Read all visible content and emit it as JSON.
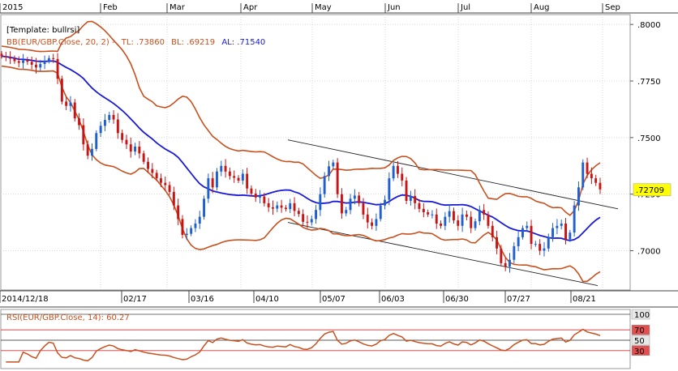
{
  "chart_data": [
    {
      "type": "candlestick",
      "template_label": "[Template: bullrsi]",
      "indicator_label": {
        "name": "BB(EUR/GBP.Close, 20, 2) -",
        "tl": "TL: .73860",
        "bl": "BL: .69219",
        "al": "AL: .71540"
      },
      "year_label": "2015",
      "month_labels": [
        "Feb",
        "Mar",
        "Apr",
        "May",
        "Jun",
        "Jul",
        "Aug",
        "Sep"
      ],
      "date_labels": [
        "2014/12/18",
        "02/17",
        "03/16",
        "04/10",
        "05/07",
        "06/03",
        "06/30",
        "07/27",
        "08/21"
      ],
      "y_ticks": [
        ".8000",
        ".7750",
        ".7500",
        ".7250",
        ".7000"
      ],
      "ylim": [
        0.683,
        0.804
      ],
      "last_price_label": ".72709",
      "last_price": 0.72709,
      "colors": {
        "up": "#1f5fd0",
        "down": "#c81414",
        "band": "#c8501e",
        "middle": "#1a1ad8",
        "last_price_bg": "#ffff00"
      },
      "closes": [
        0.786,
        0.7855,
        0.7849,
        0.7838,
        0.783,
        0.7841,
        0.7835,
        0.7822,
        0.781,
        0.7825,
        0.7838,
        0.7851,
        0.7847,
        0.776,
        0.7659,
        0.764,
        0.7655,
        0.7585,
        0.7555,
        0.747,
        0.742,
        0.745,
        0.752,
        0.7552,
        0.7578,
        0.76,
        0.758,
        0.752,
        0.749,
        0.747,
        0.7438,
        0.746,
        0.743,
        0.7393,
        0.7361,
        0.7344,
        0.732,
        0.73,
        0.729,
        0.726,
        0.72,
        0.714,
        0.707,
        0.7075,
        0.71,
        0.712,
        0.715,
        0.723,
        0.732,
        0.728,
        0.735,
        0.7375,
        0.735,
        0.733,
        0.7322,
        0.731,
        0.734,
        0.7275,
        0.7252,
        0.7235,
        0.724,
        0.721,
        0.7192,
        0.7186,
        0.72,
        0.719,
        0.7184,
        0.721,
        0.7176,
        0.7162,
        0.7128,
        0.7125,
        0.714,
        0.718,
        0.725,
        0.733,
        0.7373,
        0.739,
        0.725,
        0.7165,
        0.718,
        0.723,
        0.7244,
        0.721,
        0.716,
        0.7125,
        0.711,
        0.714,
        0.72,
        0.7225,
        0.732,
        0.7375,
        0.734,
        0.731,
        0.722,
        0.7242,
        0.721,
        0.7185,
        0.717,
        0.716,
        0.716,
        0.712,
        0.711,
        0.715,
        0.7175,
        0.7134,
        0.711,
        0.716,
        0.715,
        0.71,
        0.713,
        0.718,
        0.716,
        0.711,
        0.706,
        0.701,
        0.6945,
        0.693,
        0.696,
        0.702,
        0.706,
        0.71,
        0.711,
        0.703,
        0.703,
        0.7,
        0.701,
        0.706,
        0.71,
        0.711,
        0.712,
        0.705,
        0.708,
        0.72,
        0.728,
        0.739,
        0.734,
        0.732,
        0.73,
        0.7271
      ]
    },
    {
      "type": "line",
      "label": "RSI(EUR/GBP.Close, 14): 60.27",
      "y_ticks": [
        "100",
        "70",
        "50",
        "30"
      ],
      "ylim": [
        0,
        100
      ],
      "levels": [
        70,
        50,
        30
      ]
    }
  ]
}
